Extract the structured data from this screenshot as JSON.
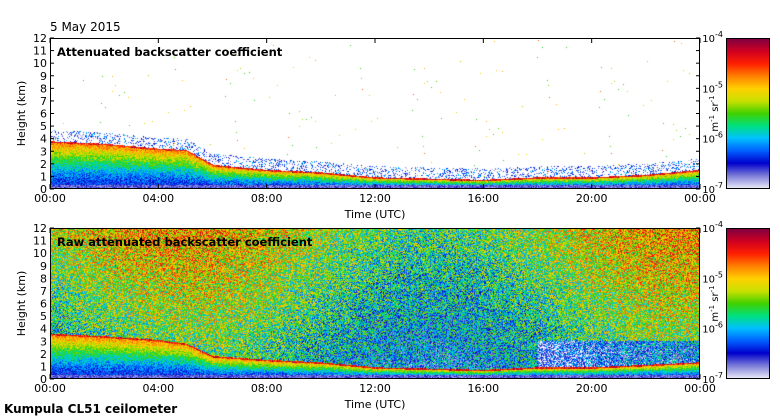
{
  "date": "5 May 2015",
  "footer": "Kumpula CL51 ceilometer",
  "colors": {
    "colormap": [
      "#ffffff",
      "#e6e6f6",
      "#7a7ad8",
      "#0000cc",
      "#0060ff",
      "#00c0ff",
      "#00e080",
      "#40d000",
      "#c8e000",
      "#ffd000",
      "#ff8000",
      "#ff2000",
      "#d00020",
      "#800040"
    ]
  },
  "chart_data": [
    {
      "type": "heatmap",
      "title": "Attenuated backscatter coefficient",
      "xlabel": "Time (UTC)",
      "ylabel": "Height (km)",
      "x_ticks": [
        "00:00",
        "04:00",
        "08:00",
        "12:00",
        "16:00",
        "20:00",
        "00:00"
      ],
      "y_ticks": [
        "0",
        "1",
        "2",
        "3",
        "4",
        "5",
        "6",
        "7",
        "8",
        "9",
        "10",
        "11",
        "12"
      ],
      "xlim_hours": [
        0,
        24
      ],
      "ylim_km": [
        0,
        12
      ],
      "colorbar": {
        "ticks": [
          "10-4",
          "10-5",
          "10-6",
          "10-7"
        ],
        "label": "m-1 sr-1",
        "log_scale": true,
        "range": [
          1e-07,
          0.0001
        ]
      },
      "layer_top_km": [
        [
          0,
          3.8
        ],
        [
          2,
          3.6
        ],
        [
          4,
          3.2
        ],
        [
          5,
          3.1
        ],
        [
          6,
          1.9
        ],
        [
          8,
          1.5
        ],
        [
          10,
          1.3
        ],
        [
          12,
          0.9
        ],
        [
          14,
          0.8
        ],
        [
          16,
          0.7
        ],
        [
          18,
          0.9
        ],
        [
          20,
          0.9
        ],
        [
          22,
          1.1
        ],
        [
          24,
          1.5
        ]
      ],
      "raw_noise": false
    },
    {
      "type": "heatmap",
      "title": "Raw attenuated backscatter coefficient",
      "xlabel": "Time (UTC)",
      "ylabel": "Height (km)",
      "x_ticks": [
        "00:00",
        "04:00",
        "08:00",
        "12:00",
        "16:00",
        "20:00",
        "00:00"
      ],
      "y_ticks": [
        "0",
        "1",
        "2",
        "3",
        "4",
        "5",
        "6",
        "7",
        "8",
        "9",
        "10",
        "11",
        "12"
      ],
      "xlim_hours": [
        0,
        24
      ],
      "ylim_km": [
        0,
        12
      ],
      "colorbar": {
        "ticks": [
          "10-4",
          "10-5",
          "10-6",
          "10-7"
        ],
        "label": "m-1 sr-1",
        "log_scale": true,
        "range": [
          1e-07,
          0.0001
        ]
      },
      "layer_top_km": [
        [
          0,
          3.6
        ],
        [
          2,
          3.4
        ],
        [
          4,
          3.1
        ],
        [
          5,
          2.8
        ],
        [
          6,
          1.8
        ],
        [
          8,
          1.5
        ],
        [
          10,
          1.3
        ],
        [
          12,
          0.9
        ],
        [
          14,
          0.8
        ],
        [
          16,
          0.7
        ],
        [
          18,
          0.9
        ],
        [
          20,
          0.9
        ],
        [
          22,
          1.1
        ],
        [
          24,
          1.3
        ]
      ],
      "raw_noise": true
    }
  ]
}
